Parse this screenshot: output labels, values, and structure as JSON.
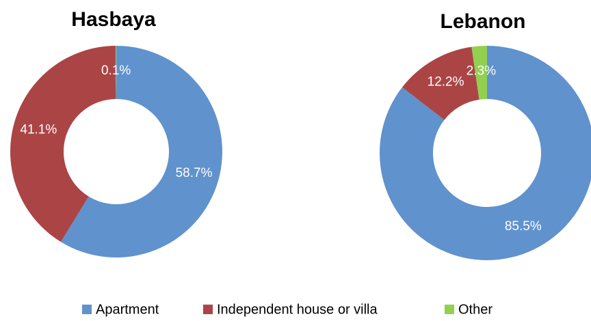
{
  "chart_data": [
    {
      "type": "pie",
      "title": "Hasbaya",
      "categories": [
        "Apartment",
        "Independent house or villa",
        "Other"
      ],
      "values": [
        58.7,
        41.1,
        0.1
      ],
      "value_labels": [
        "58.7%",
        "41.1%",
        "0.1%"
      ],
      "colors": [
        "#6092cd",
        "#ab4545",
        "#92d050"
      ],
      "donut": true,
      "legend": "bottom"
    },
    {
      "type": "pie",
      "title": "Lebanon",
      "categories": [
        "Apartment",
        "Independent house or villa",
        "Other"
      ],
      "values": [
        85.5,
        12.2,
        2.3
      ],
      "value_labels": [
        "85.5%",
        "12.2%",
        "2.3%"
      ],
      "colors": [
        "#6092cd",
        "#ab4545",
        "#92d050"
      ],
      "donut": true,
      "legend": "bottom"
    }
  ]
}
